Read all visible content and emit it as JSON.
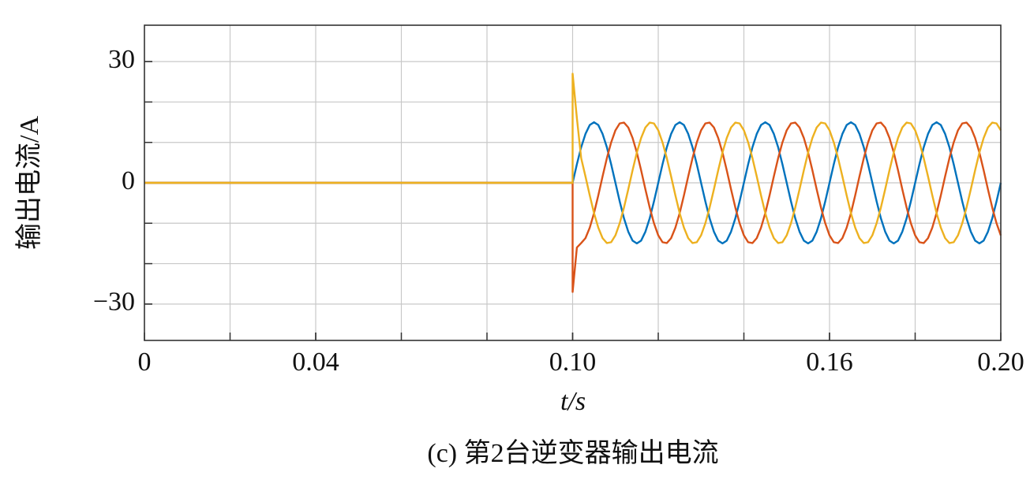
{
  "chart_data": {
    "type": "line",
    "ylabel": "输出电流/A",
    "xlabel": "t/s",
    "caption": "(c) 第2台逆变器输出电流",
    "xlim": [
      0,
      0.2
    ],
    "ylim": [
      -39,
      39
    ],
    "xticks": [
      0,
      0.04,
      {
        "value": 0.1,
        "label": "0.10"
      },
      0.16,
      {
        "value": 0.2,
        "label": "0.20"
      }
    ],
    "yticks": [
      30,
      0,
      {
        "value": -30,
        "label": "−30"
      }
    ],
    "xgrid": [
      0.02,
      0.04,
      0.06,
      0.08,
      0.1,
      0.12,
      0.14,
      0.16,
      0.18
    ],
    "ygrid": [
      -30,
      -20,
      -10,
      0,
      10,
      20,
      30
    ],
    "grid": true,
    "x": [
      0,
      0.1,
      0.1,
      0.101,
      0.102,
      0.103,
      0.104,
      0.105,
      0.106,
      0.107,
      0.108,
      0.109,
      0.11,
      0.111,
      0.112,
      0.113,
      0.114,
      0.115,
      0.116,
      0.117,
      0.118,
      0.119,
      0.12,
      0.121,
      0.122,
      0.123,
      0.124,
      0.125,
      0.126,
      0.127,
      0.128,
      0.129,
      0.13,
      0.131,
      0.132,
      0.133,
      0.134,
      0.135,
      0.136,
      0.137,
      0.138,
      0.139,
      0.14,
      0.141,
      0.142,
      0.143,
      0.144,
      0.145,
      0.146,
      0.147,
      0.148,
      0.149,
      0.15,
      0.151,
      0.152,
      0.153,
      0.154,
      0.155,
      0.156,
      0.157,
      0.158,
      0.159,
      0.16,
      0.161,
      0.162,
      0.163,
      0.164,
      0.165,
      0.166,
      0.167,
      0.168,
      0.169,
      0.17,
      0.171,
      0.172,
      0.173,
      0.174,
      0.175,
      0.176,
      0.177,
      0.178,
      0.179,
      0.18,
      0.181,
      0.182,
      0.183,
      0.184,
      0.185,
      0.186,
      0.187,
      0.188,
      0.189,
      0.19,
      0.191,
      0.192,
      0.193,
      0.194,
      0.195,
      0.196,
      0.197,
      0.198,
      0.199,
      0.2
    ],
    "series": [
      {
        "color": "#0072bd",
        "values": [
          0,
          0,
          0,
          4.6,
          8.8,
          12.1,
          14.3,
          15,
          14.3,
          12.1,
          8.8,
          4.6,
          0,
          -4.6,
          -8.8,
          -12.1,
          -14.3,
          -15,
          -14.3,
          -12.1,
          -8.8,
          -4.6,
          0,
          4.6,
          8.8,
          12.1,
          14.3,
          15,
          14.3,
          12.1,
          8.8,
          4.6,
          0,
          -4.6,
          -8.8,
          -12.1,
          -14.3,
          -15,
          -14.3,
          -12.1,
          -8.8,
          -4.6,
          0,
          4.6,
          8.8,
          12.1,
          14.3,
          15,
          14.3,
          12.1,
          8.8,
          4.6,
          0,
          -4.6,
          -8.8,
          -12.1,
          -14.3,
          -15,
          -14.3,
          -12.1,
          -8.8,
          -4.6,
          0,
          4.6,
          8.8,
          12.1,
          14.3,
          15,
          14.3,
          12.1,
          8.8,
          4.6,
          0,
          -4.6,
          -8.8,
          -12.1,
          -14.3,
          -15,
          -14.3,
          -12.1,
          -8.8,
          -4.6,
          0,
          4.6,
          8.8,
          12.1,
          14.3,
          15,
          14.3,
          12.1,
          8.8,
          4.6,
          0,
          -4.6,
          -8.8,
          -12.1,
          -14.3,
          -15,
          -14.3,
          -12.1,
          -8.8,
          -4.6,
          0
        ]
      },
      {
        "color": "#d95319",
        "values": [
          0,
          0,
          -27,
          -16,
          -14.9,
          -13.7,
          -11.1,
          -7.5,
          -3.1,
          1.6,
          6.1,
          10,
          13,
          14.7,
          14.9,
          13.7,
          11.1,
          7.5,
          3.1,
          -1.6,
          -6.1,
          -10,
          -13,
          -14.7,
          -14.9,
          -13.7,
          -11.1,
          -7.5,
          -3.1,
          1.6,
          6.1,
          10,
          13,
          14.7,
          14.9,
          13.7,
          11.1,
          7.5,
          3.1,
          -1.6,
          -6.1,
          -10,
          -13,
          -14.7,
          -14.9,
          -13.7,
          -11.1,
          -7.5,
          -3.1,
          1.6,
          6.1,
          10,
          13,
          14.7,
          14.9,
          13.7,
          11.1,
          7.5,
          3.1,
          -1.6,
          -6.1,
          -10,
          -13,
          -14.7,
          -14.9,
          -13.7,
          -11.1,
          -7.5,
          -3.1,
          1.6,
          6.1,
          10,
          13,
          14.7,
          14.9,
          13.7,
          11.1,
          7.5,
          3.1,
          -1.6,
          -6.1,
          -10,
          -13,
          -14.7,
          -14.9,
          -13.7,
          -11.1,
          -7.5,
          -3.1,
          1.6,
          6.1,
          10,
          13,
          14.7,
          14.9,
          13.7,
          11.1,
          7.5,
          3.1,
          -1.6,
          -6.1,
          -10,
          -13
        ]
      },
      {
        "color": "#edb120",
        "values": [
          0,
          0,
          27,
          16,
          6.1,
          1.6,
          -3.1,
          -7.5,
          -11.1,
          -13.7,
          -14.9,
          -14.7,
          -13,
          -10,
          -6.1,
          -1.6,
          3.1,
          7.5,
          11.1,
          13.7,
          14.9,
          14.7,
          13,
          10,
          6.1,
          1.6,
          -3.1,
          -7.5,
          -11.1,
          -13.7,
          -14.9,
          -14.7,
          -13,
          -10,
          -6.1,
          -1.6,
          3.1,
          7.5,
          11.1,
          13.7,
          14.9,
          14.7,
          13,
          10,
          6.1,
          1.6,
          -3.1,
          -7.5,
          -11.1,
          -13.7,
          -14.9,
          -14.7,
          -13,
          -10,
          -6.1,
          -1.6,
          3.1,
          7.5,
          11.1,
          13.7,
          14.9,
          14.7,
          13,
          10,
          6.1,
          1.6,
          -3.1,
          -7.5,
          -11.1,
          -13.7,
          -14.9,
          -14.7,
          -13,
          -10,
          -6.1,
          -1.6,
          3.1,
          7.5,
          11.1,
          13.7,
          14.9,
          14.7,
          13,
          10,
          6.1,
          1.6,
          -3.1,
          -7.5,
          -11.1,
          -13.7,
          -14.9,
          -14.7,
          -13,
          -10,
          -6.1,
          -1.6,
          3.1,
          7.5,
          11.1,
          13.7,
          14.9,
          14.7,
          13
        ]
      }
    ]
  }
}
